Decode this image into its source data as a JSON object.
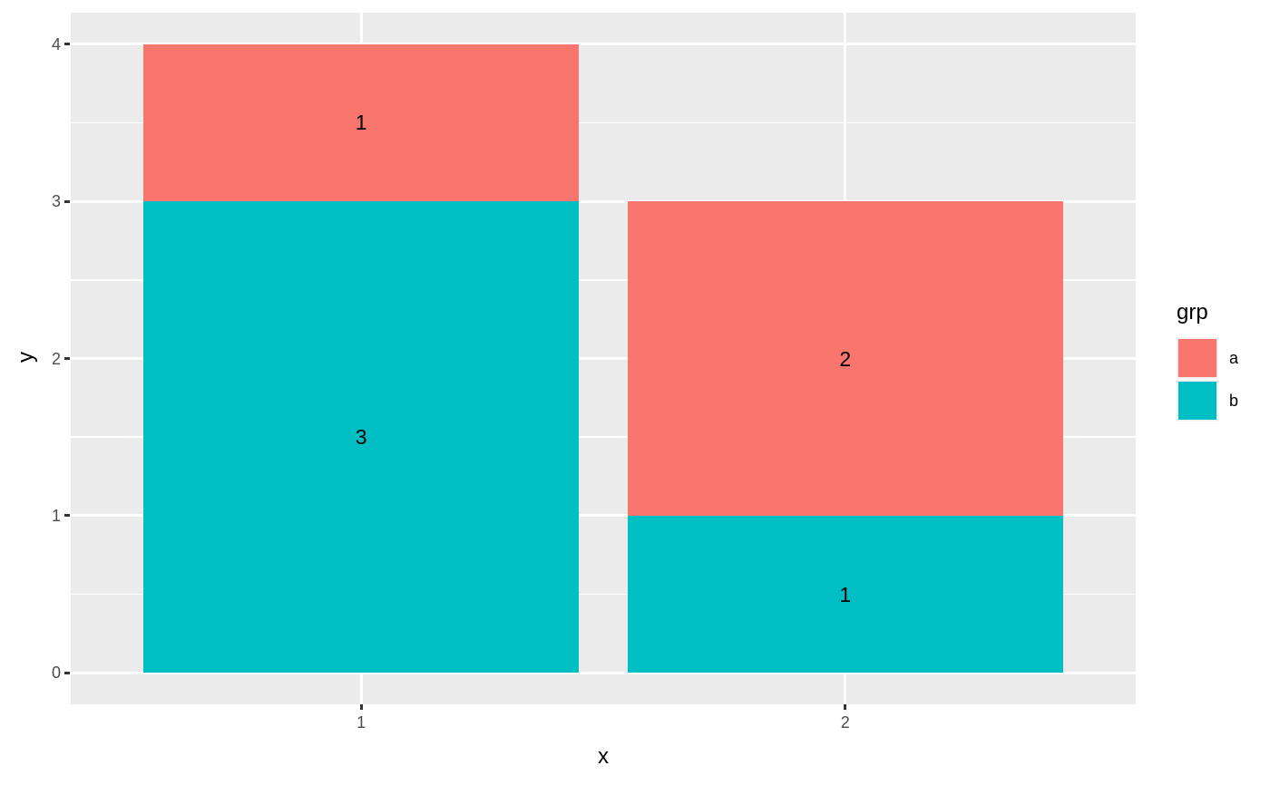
{
  "chart_data": {
    "type": "bar",
    "stacked": true,
    "title": "",
    "xlabel": "x",
    "ylabel": "y",
    "categories": [
      "1",
      "2"
    ],
    "series": [
      {
        "name": "a",
        "color": "#F8766D",
        "values": [
          1,
          2
        ]
      },
      {
        "name": "b",
        "color": "#00BFC4",
        "values": [
          3,
          1
        ]
      }
    ],
    "stack_order_bottom_to_top": [
      "b",
      "a"
    ],
    "segment_value_labels_shown": true,
    "x_ticks": [
      "1",
      "2"
    ],
    "y_ticks": [
      "0",
      "1",
      "2",
      "3",
      "4"
    ],
    "minor_y": [
      0.5,
      1.5,
      2.5,
      3.5
    ],
    "xlim": [
      0.4,
      2.6
    ],
    "ylim": [
      -0.2,
      4.2
    ],
    "bar_width": 0.9,
    "grid": "on",
    "legend": {
      "title": "grp",
      "position": "right",
      "entries": [
        {
          "label": "a",
          "color": "#F8766D"
        },
        {
          "label": "b",
          "color": "#00BFC4"
        }
      ]
    },
    "colors": {
      "page_bg": "#FFFFFF",
      "panel_bg": "#EBEBEB",
      "grid": "#FFFFFF",
      "tick_mark": "#333333",
      "tick_text": "#4D4D4D",
      "title_text": "#000000",
      "label_text": "#000000",
      "key_bg": "#F2F2F2"
    }
  }
}
